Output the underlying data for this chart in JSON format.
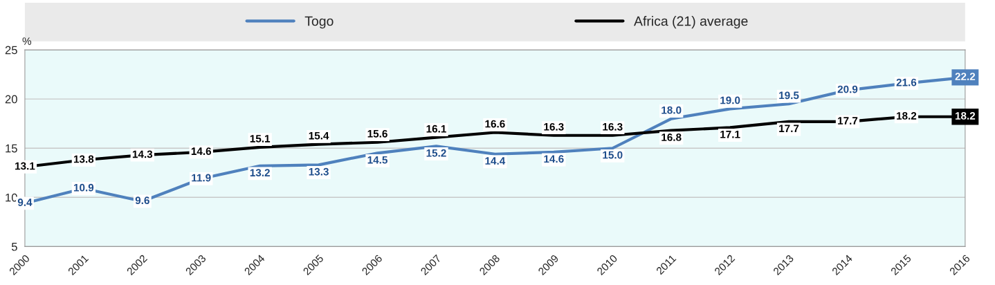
{
  "chart_data": {
    "type": "line",
    "ylabel": "%",
    "x": [
      2000,
      2001,
      2002,
      2003,
      2004,
      2005,
      2006,
      2007,
      2008,
      2009,
      2010,
      2011,
      2012,
      2013,
      2014,
      2015,
      2016
    ],
    "series": [
      {
        "name": "Togo",
        "color": "#4f81bd",
        "values": [
          9.4,
          10.9,
          9.6,
          11.9,
          13.2,
          13.3,
          14.5,
          15.2,
          14.4,
          14.6,
          15.0,
          18.0,
          19.0,
          19.5,
          20.9,
          21.6,
          22.2
        ],
        "value_labels": [
          "9.4",
          "10.9",
          "9.6",
          "11.9",
          "13.2",
          "13.3",
          "14.5",
          "15.2",
          "14.4",
          "14.6",
          "15.0",
          "18.0",
          "19.0",
          "19.5",
          "20.9",
          "21.6",
          "22.2"
        ]
      },
      {
        "name": "Africa (21) average",
        "color": "#000000",
        "values": [
          13.1,
          13.8,
          14.3,
          14.6,
          15.1,
          15.4,
          15.6,
          16.1,
          16.6,
          16.3,
          16.3,
          16.8,
          17.1,
          17.7,
          17.7,
          18.2,
          18.2
        ],
        "value_labels": [
          "13.1",
          "13.8",
          "14.3",
          "14.6",
          "15.1",
          "15.4",
          "15.6",
          "16.1",
          "16.6",
          "16.3",
          "16.3",
          "16.8",
          "17.1",
          "17.7",
          "17.7",
          "18.2",
          "18.2"
        ]
      }
    ],
    "xlim": [
      2000,
      2016
    ],
    "xticks": [
      2000,
      2001,
      2002,
      2003,
      2004,
      2005,
      2006,
      2007,
      2008,
      2009,
      2010,
      2011,
      2012,
      2013,
      2014,
      2015,
      2016
    ],
    "ylim": [
      5,
      25
    ],
    "yticks": [
      5,
      10,
      15,
      20,
      25
    ],
    "grid": "y",
    "legend": "top",
    "line_style": "solid"
  }
}
